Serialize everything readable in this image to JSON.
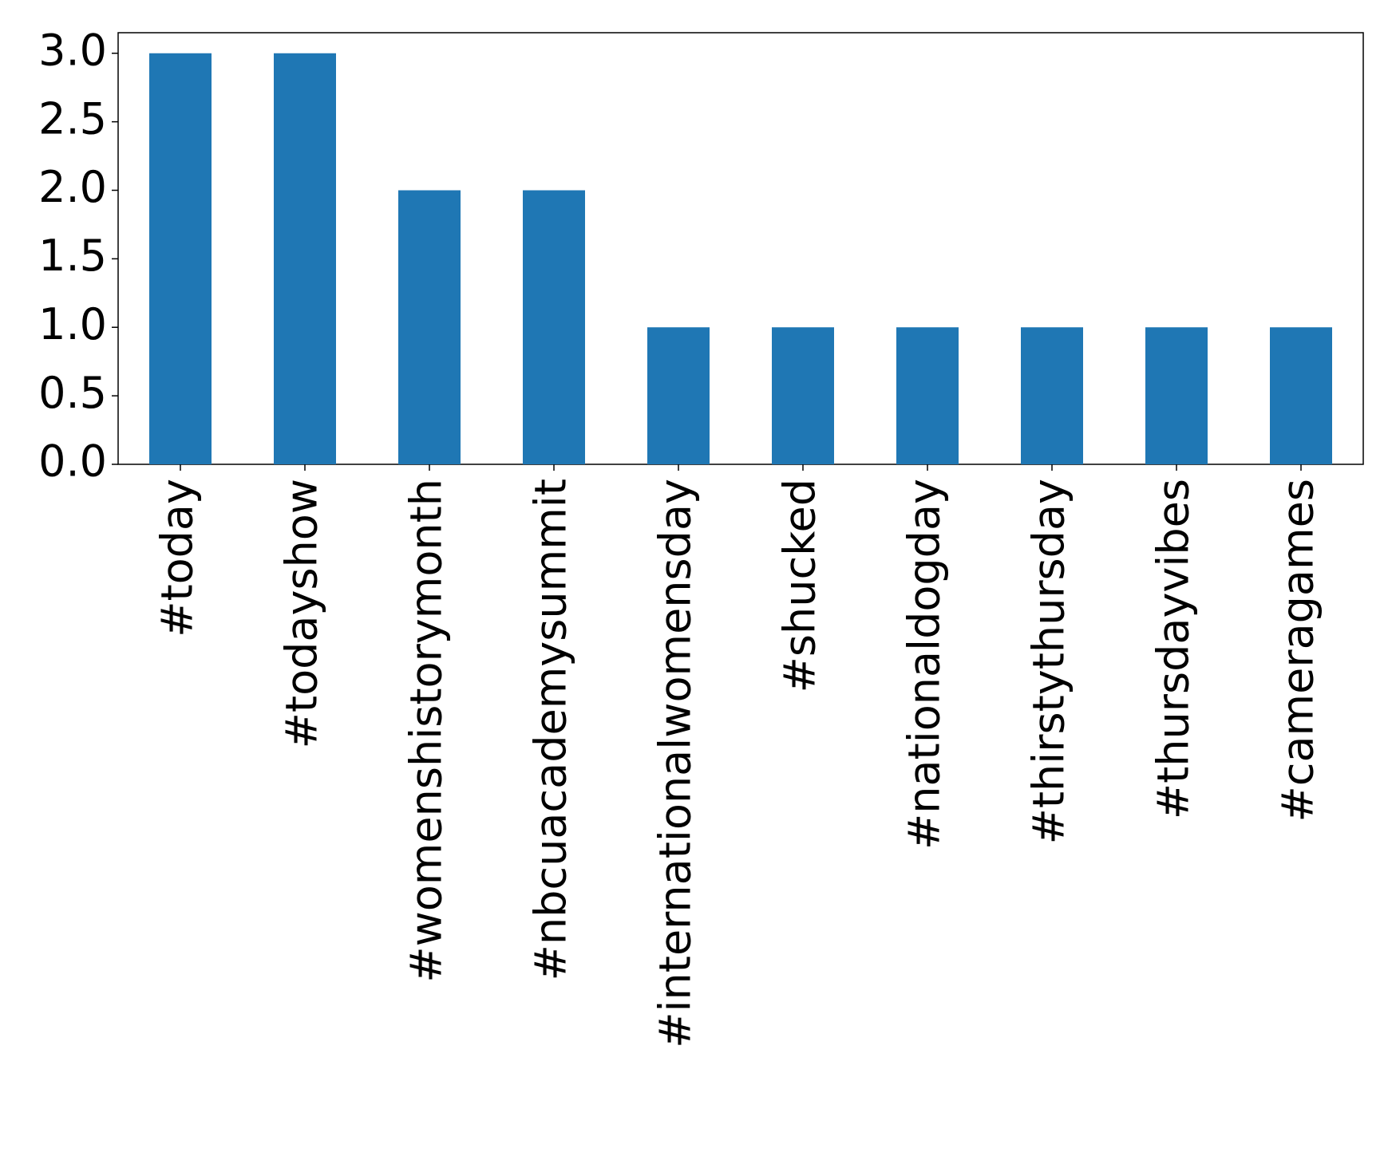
{
  "chart_data": {
    "type": "bar",
    "categories": [
      "#today",
      "#todayshow",
      "#womenshistorymonth",
      "#nbcuacademysummit",
      "#internationalwomensday",
      "#shucked",
      "#nationaldogday",
      "#thirstythursday",
      "#thursdayvibes",
      "#cameragames"
    ],
    "values": [
      3,
      3,
      2,
      2,
      1,
      1,
      1,
      1,
      1,
      1
    ],
    "color": "#1f77b4",
    "ylim": [
      0,
      3.15
    ],
    "yticks": [
      {
        "value": 0,
        "label": "0.0"
      },
      0.5,
      {
        "value": 1,
        "label": "1.0"
      },
      1.5,
      {
        "value": 2,
        "label": "2.0"
      },
      2.5,
      {
        "value": 3,
        "label": "3.0"
      }
    ],
    "grid": false
  }
}
